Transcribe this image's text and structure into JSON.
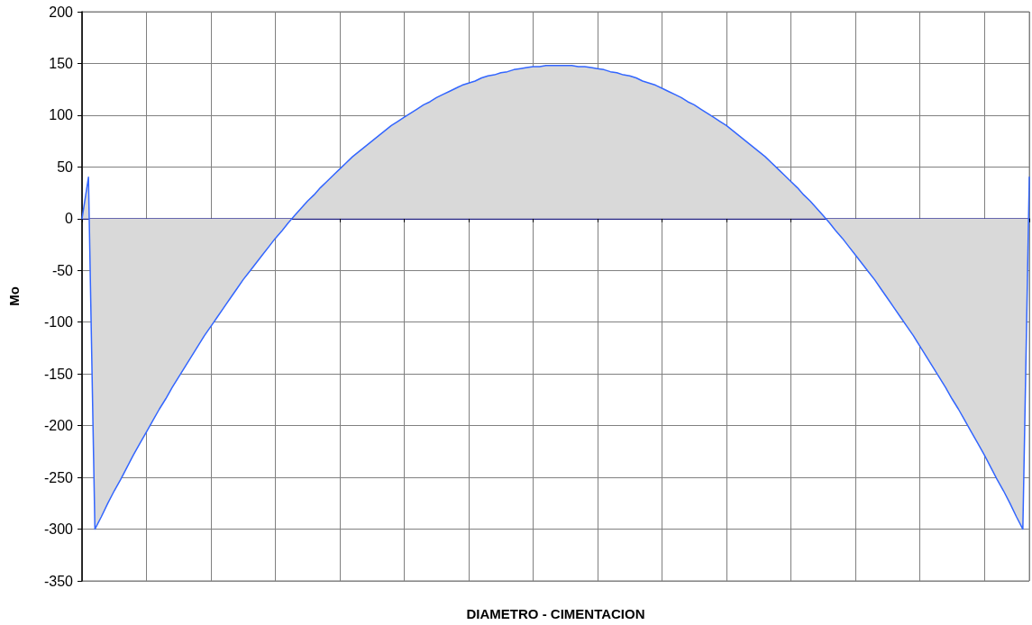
{
  "chart_data": {
    "type": "area",
    "xlabel": "DIAMETRO - CIMENTACION",
    "ylabel": "Mo",
    "categories": [
      null,
      null,
      null,
      null,
      null,
      null,
      null,
      null,
      null,
      null,
      null,
      null,
      null,
      null,
      null,
      null,
      null,
      null,
      null,
      null,
      null,
      null,
      null,
      null,
      null,
      null,
      null,
      null,
      null,
      null,
      null,
      null,
      null,
      null,
      null,
      null,
      null,
      null,
      null,
      null,
      null,
      null,
      null,
      null,
      null,
      null,
      null,
      null,
      null,
      null,
      null,
      null,
      null,
      null,
      null,
      null,
      null,
      null,
      null,
      null,
      null,
      null,
      null,
      null,
      null,
      null,
      null,
      null,
      null,
      null,
      null,
      null,
      null,
      null,
      null,
      null,
      null,
      null,
      null,
      null,
      null,
      null,
      null,
      null,
      null,
      null,
      null,
      null,
      null,
      null,
      null,
      null,
      null,
      null,
      null,
      null,
      null,
      null,
      null,
      null,
      null,
      null,
      null,
      null,
      null,
      null,
      null,
      null,
      null,
      null,
      null,
      null,
      null,
      null,
      null,
      null,
      null,
      null,
      null,
      null,
      null,
      null,
      null,
      null,
      null,
      null,
      null,
      null,
      null,
      null,
      null,
      null,
      null,
      null,
      null,
      null,
      null,
      null,
      null,
      null,
      null,
      null,
      null,
      null,
      null,
      null,
      null,
      null
    ],
    "series": [
      {
        "color": "#3366ff",
        "values": [
          0,
          40,
          -300,
          -288,
          -275,
          -263,
          -252,
          -240,
          -228,
          -217,
          -206,
          -195,
          -184,
          -174,
          -163,
          -153,
          -143,
          -133,
          -123,
          -113,
          -104,
          -95,
          -86,
          -77,
          -68,
          -59,
          -51,
          -43,
          -35,
          -27,
          -19,
          -12,
          -4,
          3,
          10,
          17,
          23,
          30,
          36,
          42,
          48,
          54,
          60,
          65,
          70,
          75,
          80,
          85,
          90,
          94,
          98,
          102,
          106,
          110,
          113,
          117,
          120,
          123,
          126,
          129,
          131,
          133,
          136,
          138,
          139,
          141,
          142,
          144,
          145,
          146,
          147,
          147,
          148,
          148,
          148,
          148,
          148,
          147,
          147,
          146,
          145,
          144,
          142,
          141,
          139,
          138,
          136,
          133,
          131,
          129,
          126,
          123,
          120,
          117,
          113,
          110,
          106,
          102,
          98,
          94,
          90,
          85,
          80,
          75,
          70,
          65,
          60,
          54,
          48,
          42,
          36,
          30,
          23,
          17,
          10,
          3,
          -4,
          -12,
          -19,
          -27,
          -35,
          -43,
          -51,
          -59,
          -68,
          -77,
          -86,
          -95,
          -104,
          -113,
          -123,
          -133,
          -143,
          -153,
          -163,
          -174,
          -184,
          -195,
          -206,
          -217,
          -228,
          -240,
          -252,
          -263,
          -275,
          -288,
          -300,
          40
        ]
      }
    ],
    "ylim": [
      -350,
      200
    ],
    "yticks": [
      -350,
      -300,
      -250,
      -200,
      -150,
      -100,
      -50,
      0,
      50,
      100,
      150,
      200
    ],
    "grid": true,
    "marker": "none",
    "line_style": "solid"
  }
}
